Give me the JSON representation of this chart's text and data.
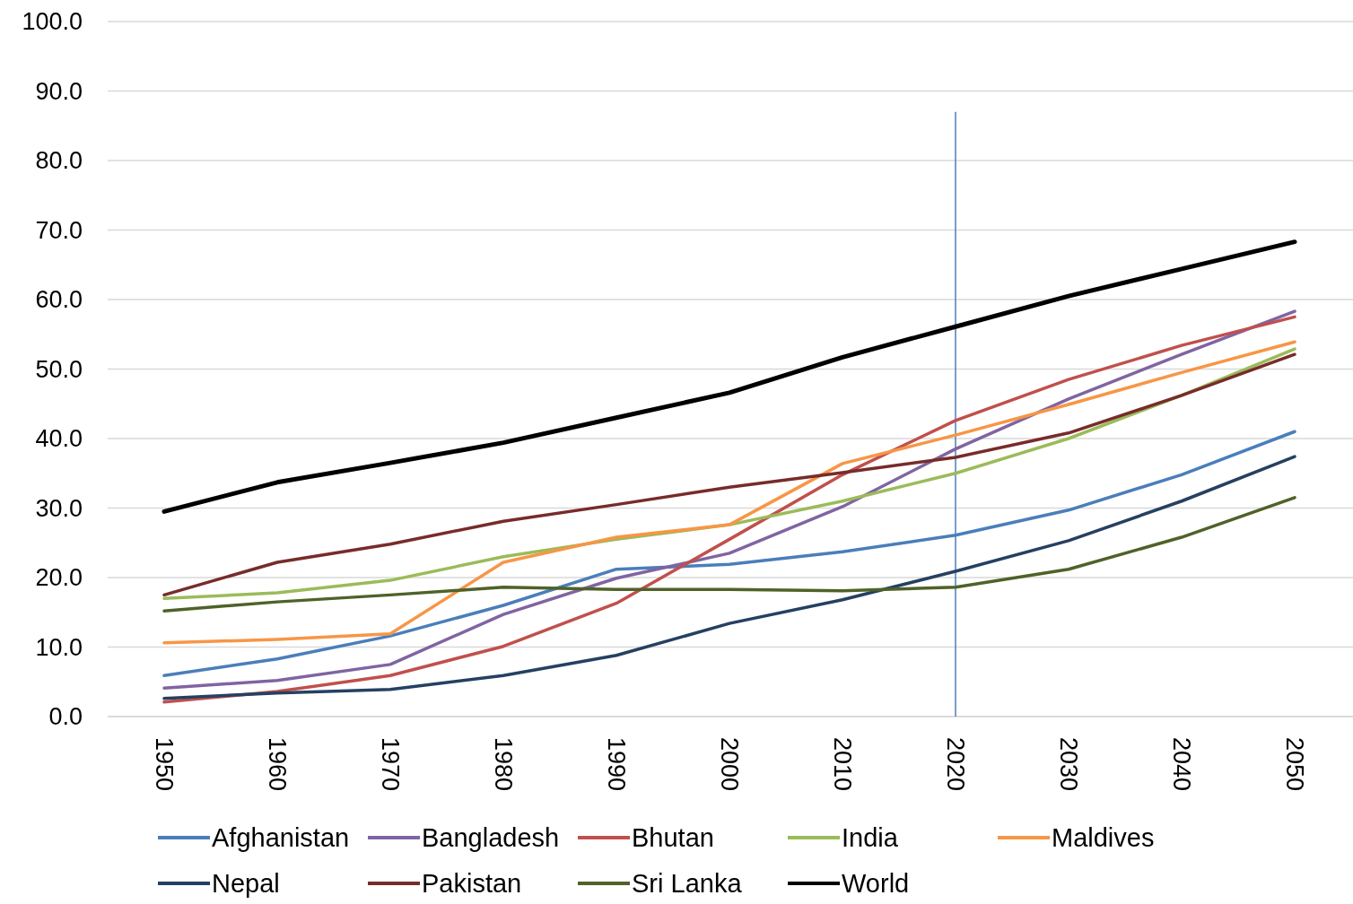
{
  "chart_data": {
    "type": "line",
    "categories": [
      "1950",
      "1960",
      "1970",
      "1980",
      "1990",
      "2000",
      "2010",
      "2020",
      "2030",
      "2040",
      "2050"
    ],
    "series": [
      {
        "name": "Afghanistan",
        "color": "#4a7ebb",
        "values": [
          5.9,
          8.3,
          11.6,
          16.0,
          21.2,
          21.9,
          23.7,
          26.1,
          29.7,
          34.8,
          41.0
        ]
      },
      {
        "name": "Bangladesh",
        "color": "#8064a2",
        "values": [
          4.1,
          5.2,
          7.5,
          14.7,
          19.9,
          23.5,
          30.2,
          38.5,
          45.7,
          52.1,
          58.3
        ]
      },
      {
        "name": "Bhutan",
        "color": "#c0504d",
        "values": [
          2.1,
          3.6,
          5.9,
          10.1,
          16.3,
          25.5,
          34.8,
          42.6,
          48.5,
          53.4,
          57.5
        ]
      },
      {
        "name": "India",
        "color": "#9bbb59",
        "values": [
          17.0,
          17.8,
          19.6,
          23.0,
          25.5,
          27.6,
          31.0,
          35.0,
          40.0,
          46.2,
          52.9
        ]
      },
      {
        "name": "Maldives",
        "color": "#f79646",
        "values": [
          10.6,
          11.1,
          11.9,
          22.2,
          25.8,
          27.6,
          36.4,
          40.5,
          44.9,
          49.5,
          53.9
        ]
      },
      {
        "name": "Nepal",
        "color": "#254061",
        "values": [
          2.6,
          3.4,
          3.9,
          5.9,
          8.8,
          13.4,
          16.8,
          20.9,
          25.3,
          31.0,
          37.4
        ]
      },
      {
        "name": "Pakistan",
        "color": "#772c2a",
        "values": [
          17.5,
          22.2,
          24.8,
          28.1,
          30.5,
          33.0,
          35.1,
          37.3,
          40.8,
          46.2,
          52.1
        ]
      },
      {
        "name": "Sri Lanka",
        "color": "#4f6228",
        "values": [
          15.2,
          16.5,
          17.5,
          18.6,
          18.3,
          18.3,
          18.1,
          18.6,
          21.2,
          25.8,
          31.5
        ]
      },
      {
        "name": "World",
        "color": "#000000",
        "values": [
          29.5,
          33.7,
          36.5,
          39.4,
          43.0,
          46.6,
          51.7,
          56.1,
          60.5,
          64.4,
          68.3
        ]
      }
    ],
    "ylim": [
      0,
      100
    ],
    "yticks": [
      {
        "value": 0,
        "label": "0.0"
      },
      {
        "value": 10,
        "label": "10.0"
      },
      {
        "value": 20,
        "label": "20.0"
      },
      {
        "value": 30,
        "label": "30.0"
      },
      {
        "value": 40,
        "label": "40.0"
      },
      {
        "value": 50,
        "label": "50.0"
      },
      {
        "value": 60,
        "label": "60.0"
      },
      {
        "value": 70,
        "label": "70.0"
      },
      {
        "value": 80,
        "label": "80.0"
      },
      {
        "value": 90,
        "label": "90.0"
      },
      {
        "value": 100,
        "label": "100.0"
      }
    ],
    "ref_lines": [
      {
        "axis": "x",
        "value": "2020",
        "color": "#4a7ebb"
      }
    ],
    "grid": "y",
    "legend": "bottom",
    "marker": "none",
    "line_style": "solid"
  }
}
